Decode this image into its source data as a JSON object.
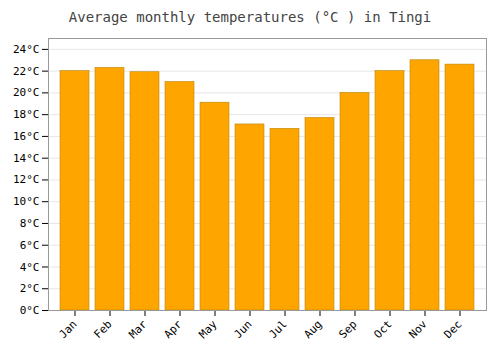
{
  "chart_data": {
    "type": "bar",
    "title": "Average monthly temperatures (°C ) in Tingi",
    "categories": [
      "Jan",
      "Feb",
      "Mar",
      "Apr",
      "May",
      "Jun",
      "Jul",
      "Aug",
      "Sep",
      "Oct",
      "Nov",
      "Dec"
    ],
    "values": [
      22.0,
      22.3,
      21.9,
      21.0,
      19.1,
      17.1,
      16.7,
      17.7,
      20.0,
      22.0,
      23.0,
      22.6
    ],
    "color": "#FFA500",
    "ylim": [
      0,
      25
    ],
    "yticks": [
      {
        "value": 0,
        "label": "0°C"
      },
      {
        "value": 2,
        "label": "2°C"
      },
      {
        "value": 4,
        "label": "4°C"
      },
      {
        "value": 6,
        "label": "6°C"
      },
      {
        "value": 8,
        "label": "8°C"
      },
      {
        "value": 10,
        "label": "10°C"
      },
      {
        "value": 12,
        "label": "12°C"
      },
      {
        "value": 14,
        "label": "14°C"
      },
      {
        "value": 16,
        "label": "16°C"
      },
      {
        "value": 18,
        "label": "18°C"
      },
      {
        "value": 20,
        "label": "20°C"
      },
      {
        "value": 22,
        "label": "22°C"
      },
      {
        "value": 24,
        "label": "24°C"
      }
    ],
    "grid": true
  }
}
